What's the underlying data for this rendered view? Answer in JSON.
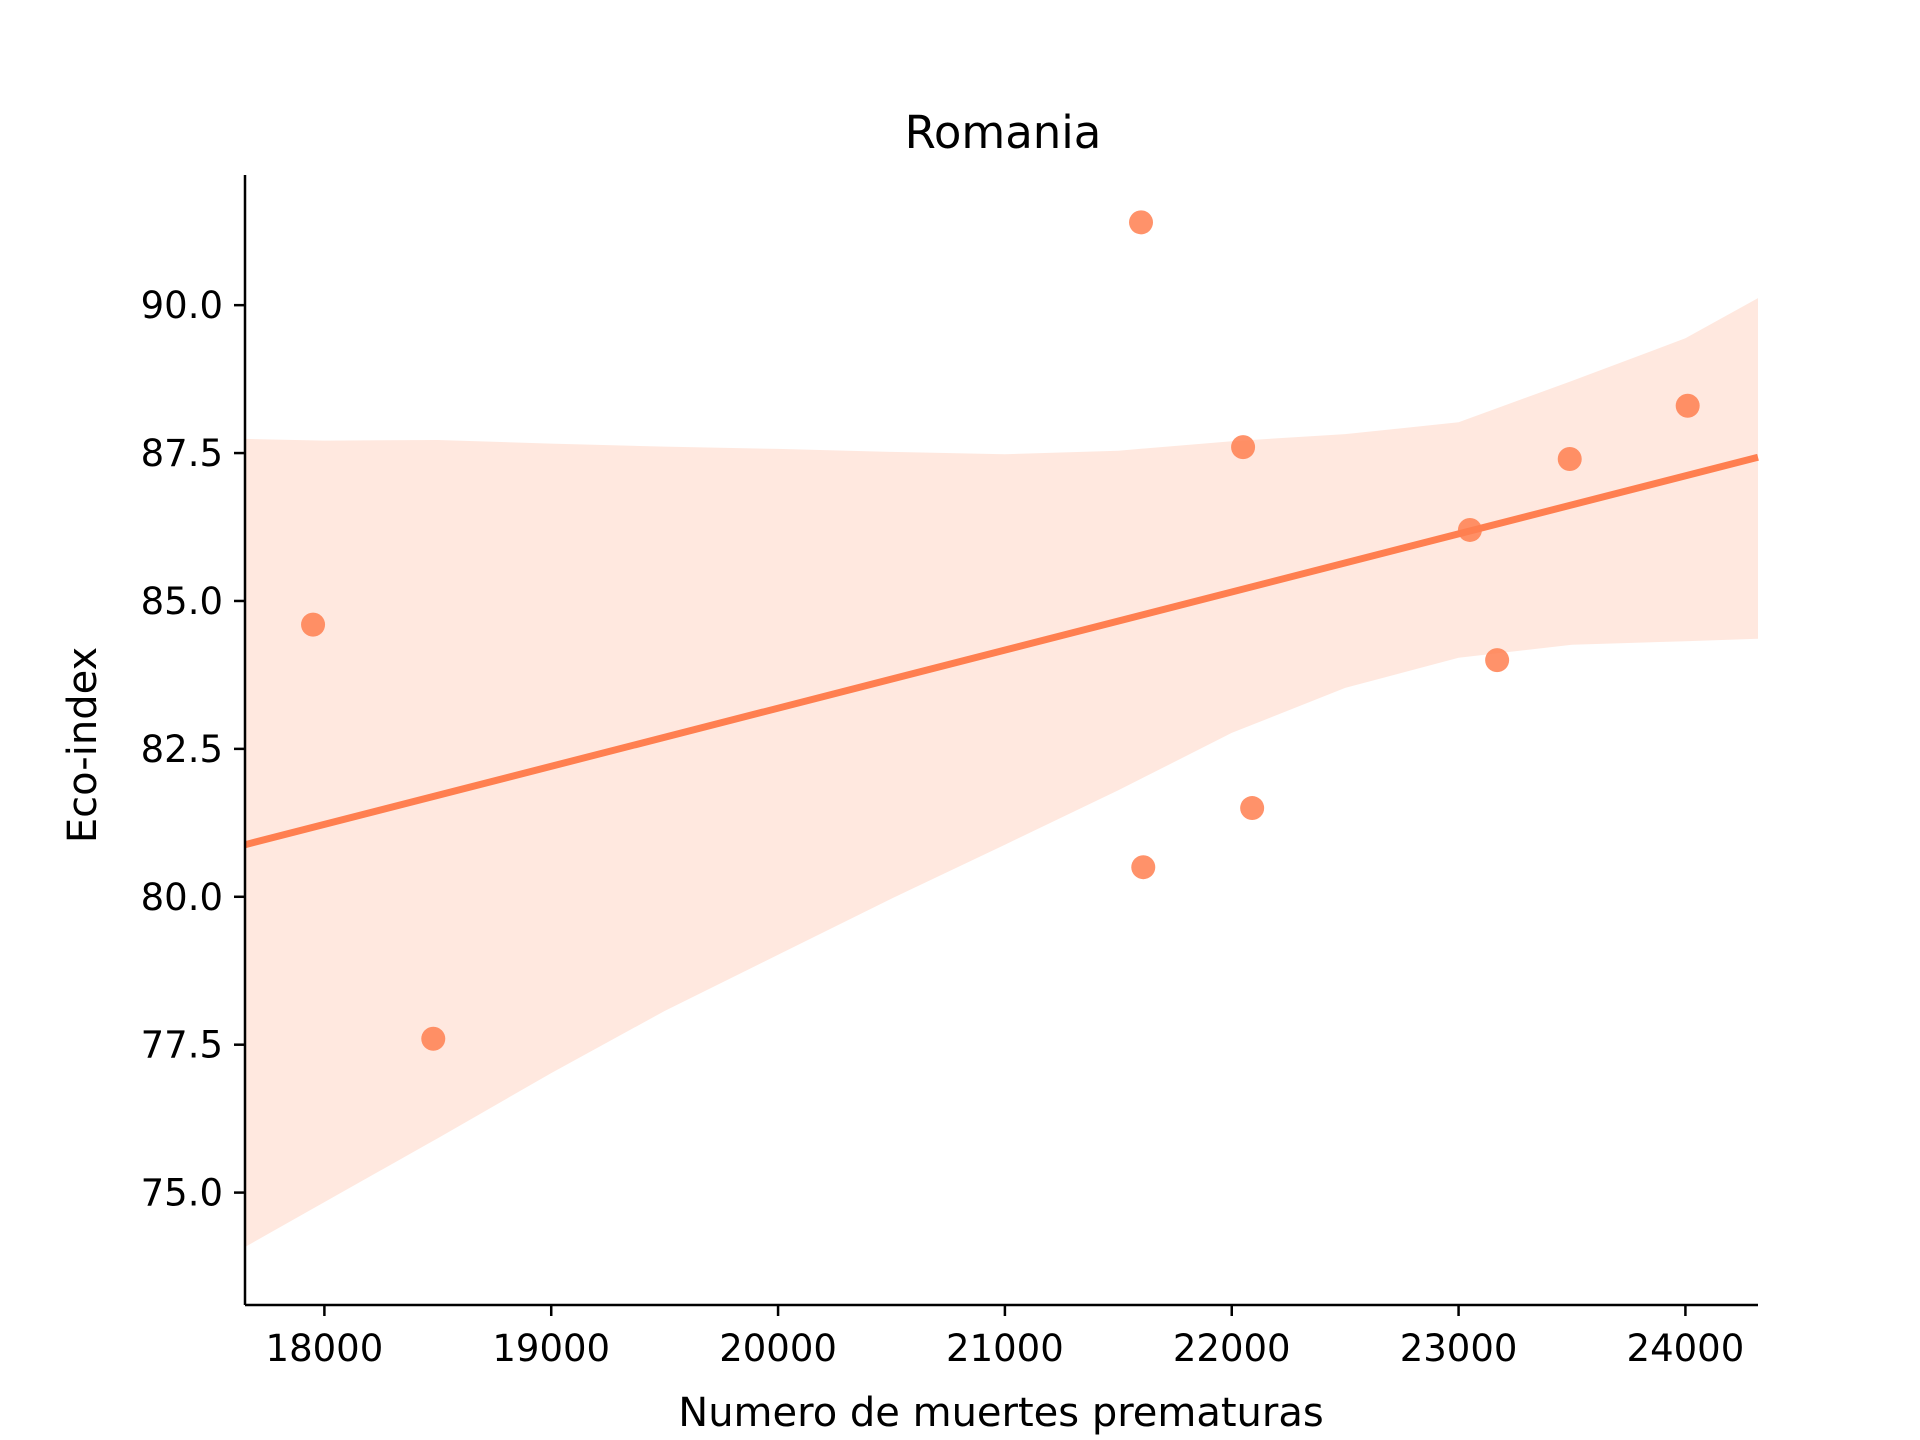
{
  "chart_data": {
    "type": "scatter",
    "title": "Romania",
    "xlabel": "Numero de muertes prematuras",
    "ylabel": "Eco-index",
    "xlim": [
      17650,
      24320
    ],
    "ylim": [
      73.1,
      92.2
    ],
    "xticks": [
      18000,
      19000,
      20000,
      21000,
      22000,
      23000,
      24000
    ],
    "xtick_labels": [
      "18000",
      "19000",
      "20000",
      "21000",
      "22000",
      "23000",
      "24000"
    ],
    "yticks": [
      75.0,
      77.5,
      80.0,
      82.5,
      85.0,
      87.5,
      90.0
    ],
    "ytick_labels": [
      "75.0",
      "77.5",
      "80.0",
      "82.5",
      "85.0",
      "87.5",
      "90.0"
    ],
    "grid": false,
    "color": "#ff7f50",
    "points": [
      {
        "x": 17950,
        "y": 84.6
      },
      {
        "x": 18480,
        "y": 77.6
      },
      {
        "x": 21600,
        "y": 91.4
      },
      {
        "x": 21610,
        "y": 80.5
      },
      {
        "x": 22050,
        "y": 87.6
      },
      {
        "x": 22090,
        "y": 81.5
      },
      {
        "x": 23050,
        "y": 86.2
      },
      {
        "x": 23170,
        "y": 84.0
      },
      {
        "x": 23490,
        "y": 87.4
      },
      {
        "x": 24010,
        "y": 88.3
      }
    ],
    "regression_line": {
      "x": [
        17650,
        24320
      ],
      "y": [
        80.88,
        87.43
      ]
    },
    "confidence_band": {
      "x": [
        17650,
        18000,
        18500,
        19000,
        19500,
        20000,
        20500,
        21000,
        21500,
        22000,
        22500,
        23000,
        23500,
        24000,
        24320
      ],
      "upper": [
        87.74,
        87.71,
        87.72,
        87.66,
        87.61,
        87.57,
        87.52,
        87.48,
        87.54,
        87.7,
        87.82,
        88.02,
        88.72,
        89.44,
        90.12
      ],
      "lower": [
        74.08,
        74.84,
        75.92,
        77.02,
        78.07,
        79.02,
        79.97,
        80.88,
        81.8,
        82.77,
        83.53,
        84.04,
        84.26,
        84.32,
        84.36
      ]
    }
  }
}
